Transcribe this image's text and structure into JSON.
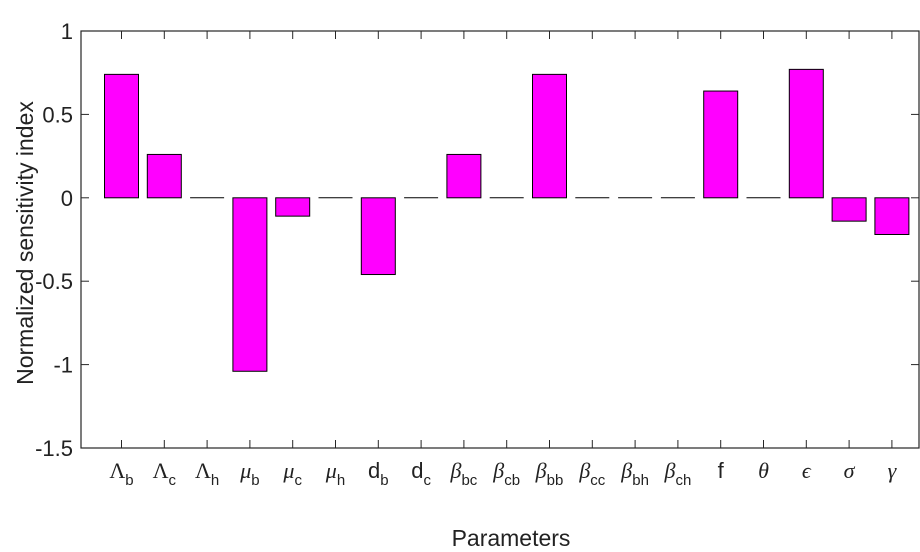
{
  "chart_data": {
    "type": "bar",
    "xlabel": "Parameters",
    "ylabel": "Normalized sensitivity index",
    "ylim": [
      -1.5,
      1
    ],
    "yticks": [
      1,
      0.5,
      0,
      -0.5,
      -1,
      -1.5
    ],
    "ytick_labels": [
      "1",
      "0.5",
      "0",
      "-0.5",
      "-1",
      "-1.5"
    ],
    "grid": false,
    "bar_color": "#ff00ff",
    "bar_edge_color": "#000000",
    "categories": [
      {
        "symbol": "Λ",
        "sub": "b",
        "italic": false
      },
      {
        "symbol": "Λ",
        "sub": "c",
        "italic": false
      },
      {
        "symbol": "Λ",
        "sub": "h",
        "italic": false
      },
      {
        "symbol": "μ",
        "sub": "b",
        "italic": true
      },
      {
        "symbol": "μ",
        "sub": "c",
        "italic": true
      },
      {
        "symbol": "μ",
        "sub": "h",
        "italic": true
      },
      {
        "symbol": "d",
        "sub": "b",
        "italic": false
      },
      {
        "symbol": "d",
        "sub": "c",
        "italic": false
      },
      {
        "symbol": "β",
        "sub": "bc",
        "italic": true
      },
      {
        "symbol": "β",
        "sub": "cb",
        "italic": true
      },
      {
        "symbol": "β",
        "sub": "bb",
        "italic": true
      },
      {
        "symbol": "β",
        "sub": "cc",
        "italic": true
      },
      {
        "symbol": "β",
        "sub": "bh",
        "italic": true
      },
      {
        "symbol": "β",
        "sub": "ch",
        "italic": true
      },
      {
        "symbol": "f",
        "sub": "",
        "italic": false
      },
      {
        "symbol": "θ",
        "sub": "",
        "italic": true
      },
      {
        "symbol": "ϵ",
        "sub": "",
        "italic": true
      },
      {
        "symbol": "σ",
        "sub": "",
        "italic": true
      },
      {
        "symbol": "γ",
        "sub": "",
        "italic": true
      }
    ],
    "values": [
      0.74,
      0.26,
      0,
      -1.04,
      -0.11,
      0,
      -0.46,
      0,
      0.26,
      0,
      0.74,
      0,
      0,
      0,
      0.64,
      0,
      0.77,
      -0.14,
      -0.22
    ]
  }
}
